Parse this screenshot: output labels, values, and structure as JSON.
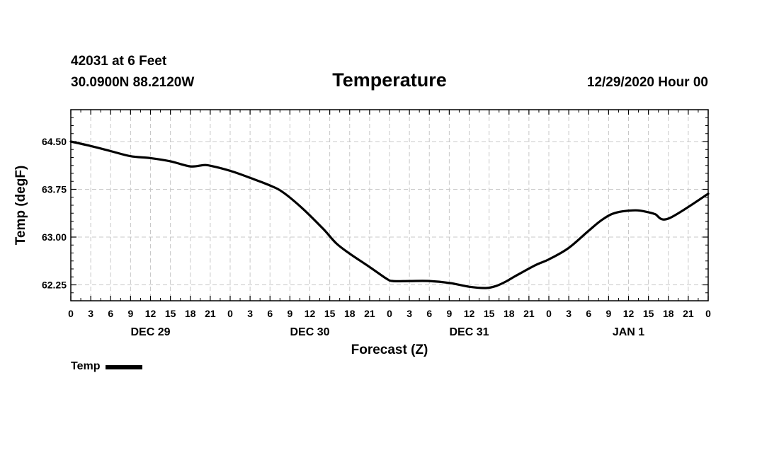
{
  "header": {
    "station": "42031 at 6 Feet",
    "coords": "30.0900N 88.2120W",
    "title": "Temperature",
    "date": "12/29/2020 Hour 00"
  },
  "chart_data": {
    "type": "line",
    "title": "Temperature",
    "xlabel": "Forecast (Z)",
    "ylabel": "Temp (degF)",
    "ylim": [
      62.0,
      65.0
    ],
    "xlim": [
      0,
      96
    ],
    "grid": true,
    "yticks": [
      62.25,
      63.0,
      63.75,
      64.5
    ],
    "ytick_labels": [
      "62.25",
      "63.00",
      "63.75",
      "64.50"
    ],
    "xtick_labels": [
      "0",
      "3",
      "6",
      "9",
      "12",
      "15",
      "18",
      "21",
      "0",
      "3",
      "6",
      "9",
      "12",
      "15",
      "18",
      "21",
      "0",
      "3",
      "6",
      "9",
      "12",
      "15",
      "18",
      "21",
      "0",
      "3",
      "6",
      "9",
      "12",
      "15",
      "18",
      "21",
      "0"
    ],
    "day_labels": [
      {
        "label": "DEC 29",
        "hour": 12
      },
      {
        "label": "DEC 30",
        "hour": 36
      },
      {
        "label": "DEC 31",
        "hour": 60
      },
      {
        "label": "JAN 1",
        "hour": 84
      }
    ],
    "legend": "bottom-left",
    "series": [
      {
        "name": "Temp",
        "color": "#000000",
        "x": [
          0,
          3,
          6,
          9,
          12,
          15,
          18,
          20,
          21,
          24,
          27,
          30,
          32,
          35,
          38,
          40,
          42,
          45,
          47.5,
          48.5,
          51,
          54,
          57,
          60,
          62.5,
          64,
          65.5,
          67,
          70,
          72,
          75,
          78,
          80,
          82,
          85,
          87,
          88,
          90,
          96
        ],
        "values": [
          64.5,
          64.43,
          64.35,
          64.27,
          64.24,
          64.19,
          64.11,
          64.13,
          64.12,
          64.04,
          63.93,
          63.81,
          63.7,
          63.44,
          63.13,
          62.9,
          62.74,
          62.53,
          62.35,
          62.31,
          62.31,
          62.31,
          62.28,
          62.22,
          62.2,
          62.23,
          62.3,
          62.39,
          62.56,
          62.65,
          62.83,
          63.1,
          63.27,
          63.38,
          63.42,
          63.39,
          63.36,
          63.29,
          63.68
        ]
      }
    ]
  }
}
